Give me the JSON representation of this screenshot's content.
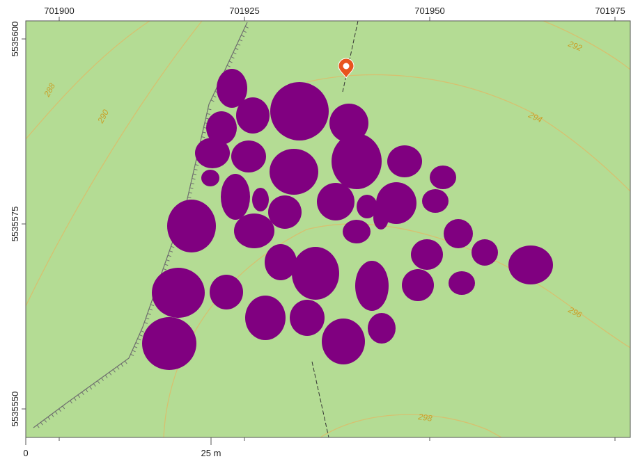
{
  "map": {
    "colors": {
      "background": "#b4dc94",
      "canopy": "#800080",
      "contour": "#d6c170",
      "contour_label": "#c8a028",
      "marker": "#e8541e",
      "frame": "#555555",
      "page": "#ffffff"
    },
    "x_ticks": [
      "701900",
      "701925",
      "701950",
      "701975"
    ],
    "y_ticks": [
      "5535600",
      "5535575",
      "5535550"
    ],
    "contour_labels": [
      "288",
      "290",
      "292",
      "294",
      "296",
      "298"
    ],
    "scale_bar": {
      "start_label": "0",
      "end_label": "25 m"
    },
    "marker_icon": "location-pin-icon",
    "canopy_count": 43
  }
}
